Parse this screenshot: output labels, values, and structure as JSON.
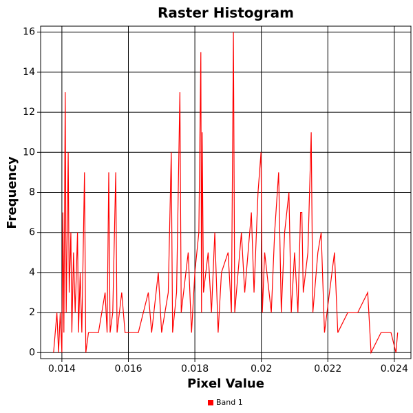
{
  "chart_data": {
    "type": "line",
    "title": "Raster Histogram",
    "x_label": "Pixel Value",
    "y_label": "Frequency",
    "x": [
      0.01375,
      0.01385,
      0.0139,
      0.01395,
      0.014,
      0.01403,
      0.01406,
      0.0141,
      0.01413,
      0.01419,
      0.01422,
      0.01427,
      0.0143,
      0.01435,
      0.0144,
      0.01447,
      0.0145,
      0.01455,
      0.0146,
      0.01468,
      0.01472,
      0.0148,
      0.0151,
      0.0153,
      0.01536,
      0.01541,
      0.01545,
      0.01553,
      0.01562,
      0.01566,
      0.0158,
      0.0159,
      0.0163,
      0.0166,
      0.0167,
      0.0169,
      0.017,
      0.0172,
      0.01729,
      0.01733,
      0.01745,
      0.01755,
      0.01759,
      0.0178,
      0.0179,
      0.018,
      0.01812,
      0.01818,
      0.0182,
      0.01822,
      0.01826,
      0.0184,
      0.0185,
      0.0186,
      0.0187,
      0.0188,
      0.019,
      0.0191,
      0.01916,
      0.0192,
      0.0194,
      0.0195,
      0.0197,
      0.01978,
      0.0199,
      0.01999,
      0.02003,
      0.0201,
      0.0203,
      0.0204,
      0.02052,
      0.0206,
      0.0207,
      0.02083,
      0.0209,
      0.021,
      0.0211,
      0.02118,
      0.02122,
      0.02126,
      0.0214,
      0.0215,
      0.02155,
      0.0217,
      0.0218,
      0.0219,
      0.0222,
      0.0223,
      0.0226,
      0.0229,
      0.0232,
      0.0233,
      0.0236,
      0.0239,
      0.02405,
      0.0241
    ],
    "series": [
      {
        "name": "Band 1",
        "color": "#ff0000",
        "values": [
          0,
          2,
          0,
          2,
          0,
          7,
          1,
          13,
          2,
          10,
          3,
          6,
          1,
          5,
          2,
          6,
          1,
          4,
          1,
          9,
          0,
          1,
          1,
          3,
          1,
          9,
          1,
          2,
          9,
          1,
          3,
          1,
          1,
          3,
          1,
          4,
          1,
          3,
          10,
          1,
          3,
          13,
          2,
          5,
          1,
          4,
          6,
          15,
          2,
          11,
          3,
          5,
          2,
          6,
          1,
          4,
          5,
          2,
          16,
          2,
          6,
          3,
          7,
          3,
          8,
          10,
          2,
          5,
          2,
          6,
          9,
          2,
          6,
          8,
          2,
          5,
          2,
          7,
          7,
          3,
          5,
          11,
          2,
          5,
          6,
          1,
          5,
          1,
          2,
          2,
          3,
          0,
          1,
          1,
          0,
          1
        ]
      }
    ],
    "xlim": [
      0.01336,
      0.0245
    ],
    "xticks": [
      0.014,
      0.016,
      0.018,
      0.02,
      0.022,
      0.024
    ],
    "ylim": [
      -0.3,
      16.3
    ],
    "yticks": [
      0,
      2,
      4,
      6,
      8,
      10,
      12,
      14,
      16
    ],
    "grid": true,
    "legend": "bottom"
  }
}
